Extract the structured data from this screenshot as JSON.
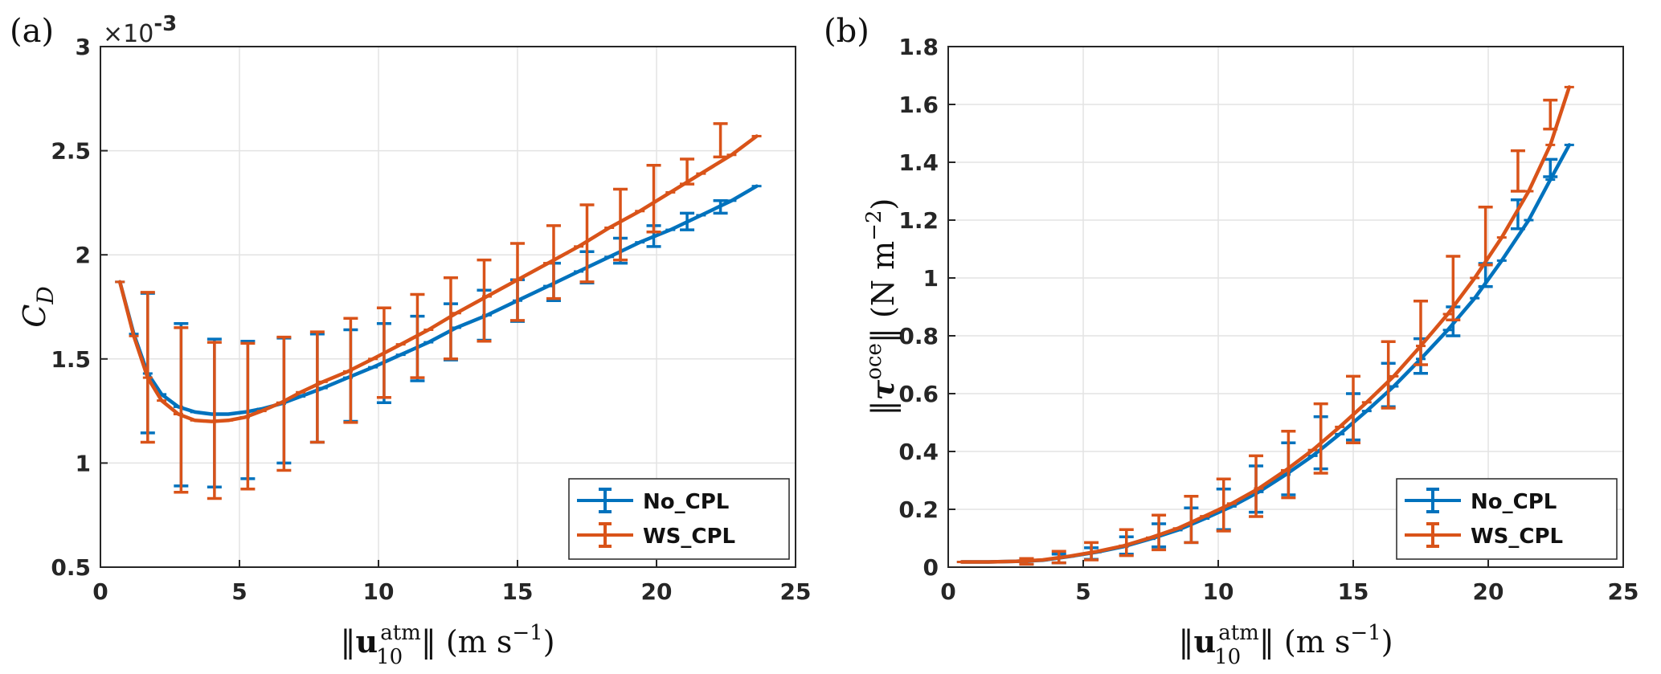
{
  "chart_data": [
    {
      "type": "line",
      "panel_label": "(a)",
      "ylabel": "C_D",
      "ylabel_main": "C",
      "ylabel_sub": "D",
      "y_scale_label_prefix": "×10",
      "y_scale_label_exp": "-3",
      "xlabel": "‖u10atm‖ (m s−1)",
      "xlabel_parts": {
        "open": "‖",
        "bold": "u",
        "sub": "10",
        "sup": "atm",
        "close": "‖ (m s",
        "unit_sup": "−1",
        "end": ")"
      },
      "xlim": [
        0,
        25
      ],
      "ylim": [
        0.5,
        3
      ],
      "xticks": [
        0,
        5,
        10,
        15,
        20,
        25
      ],
      "xtick_labels": [
        "0",
        "5",
        "10",
        "15",
        "20",
        "25"
      ],
      "yticks": [
        0.5,
        1,
        1.5,
        2,
        2.5,
        3
      ],
      "ytick_labels": [
        "0.5",
        "1",
        "1.5",
        "2",
        "2.5",
        "3"
      ],
      "grid": true,
      "legend_position": "bottom-right",
      "series": [
        {
          "name": "No_CPL",
          "color": "#0072BD",
          "x": [
            0.7,
            1.2,
            1.7,
            2.2,
            2.8,
            3.4,
            4.0,
            4.6,
            5.2,
            5.8,
            6.5,
            7.2,
            8.0,
            8.9,
            9.8,
            10.8,
            11.8,
            12.8,
            13.9,
            15.0,
            16.1,
            17.2,
            18.3,
            19.4,
            20.5,
            21.6,
            22.7,
            23.6
          ],
          "values": [
            1.87,
            1.62,
            1.43,
            1.33,
            1.27,
            1.245,
            1.235,
            1.235,
            1.245,
            1.26,
            1.285,
            1.32,
            1.36,
            1.41,
            1.46,
            1.52,
            1.58,
            1.65,
            1.71,
            1.78,
            1.85,
            1.92,
            1.99,
            2.06,
            2.12,
            2.19,
            2.26,
            2.33
          ],
          "errorbars": [
            {
              "x": 1.7,
              "y": 1.48,
              "err": 0.335
            },
            {
              "x": 2.9,
              "y": 1.28,
              "err": 0.39
            },
            {
              "x": 4.1,
              "y": 1.24,
              "err": 0.355
            },
            {
              "x": 5.3,
              "y": 1.255,
              "err": 0.33
            },
            {
              "x": 6.6,
              "y": 1.3,
              "err": 0.3
            },
            {
              "x": 7.8,
              "y": 1.36,
              "err": 0.26
            },
            {
              "x": 9.0,
              "y": 1.42,
              "err": 0.22
            },
            {
              "x": 10.2,
              "y": 1.48,
              "err": 0.19
            },
            {
              "x": 11.4,
              "y": 1.55,
              "err": 0.155
            },
            {
              "x": 12.6,
              "y": 1.63,
              "err": 0.135
            },
            {
              "x": 13.8,
              "y": 1.71,
              "err": 0.12
            },
            {
              "x": 15.0,
              "y": 1.78,
              "err": 0.1
            },
            {
              "x": 16.3,
              "y": 1.87,
              "err": 0.09
            },
            {
              "x": 17.5,
              "y": 1.94,
              "err": 0.075
            },
            {
              "x": 18.7,
              "y": 2.02,
              "err": 0.06
            },
            {
              "x": 19.9,
              "y": 2.09,
              "err": 0.05
            },
            {
              "x": 21.1,
              "y": 2.16,
              "err": 0.04
            },
            {
              "x": 22.3,
              "y": 2.23,
              "err": 0.03
            }
          ]
        },
        {
          "name": "WS_CPL",
          "color": "#D95319",
          "x": [
            0.7,
            1.2,
            1.7,
            2.2,
            2.8,
            3.4,
            4.0,
            4.6,
            5.2,
            5.8,
            6.5,
            7.2,
            8.0,
            8.9,
            9.8,
            10.8,
            11.8,
            12.8,
            13.9,
            15.0,
            16.1,
            17.2,
            18.3,
            19.4,
            20.5,
            21.6,
            22.7,
            23.6
          ],
          "values": [
            1.87,
            1.61,
            1.41,
            1.3,
            1.235,
            1.205,
            1.2,
            1.205,
            1.22,
            1.25,
            1.29,
            1.34,
            1.39,
            1.44,
            1.5,
            1.57,
            1.64,
            1.72,
            1.8,
            1.88,
            1.96,
            2.04,
            2.13,
            2.21,
            2.3,
            2.39,
            2.48,
            2.57
          ],
          "errorbars": [
            {
              "x": 1.7,
              "y": 1.46,
              "err": 0.36
            },
            {
              "x": 2.9,
              "y": 1.255,
              "err": 0.395
            },
            {
              "x": 4.1,
              "y": 1.205,
              "err": 0.375
            },
            {
              "x": 5.3,
              "y": 1.225,
              "err": 0.35
            },
            {
              "x": 6.6,
              "y": 1.285,
              "err": 0.32
            },
            {
              "x": 7.8,
              "y": 1.365,
              "err": 0.265
            },
            {
              "x": 9.0,
              "y": 1.445,
              "err": 0.25
            },
            {
              "x": 10.2,
              "y": 1.53,
              "err": 0.215
            },
            {
              "x": 11.4,
              "y": 1.61,
              "err": 0.2
            },
            {
              "x": 12.6,
              "y": 1.695,
              "err": 0.195
            },
            {
              "x": 13.8,
              "y": 1.78,
              "err": 0.195
            },
            {
              "x": 15.0,
              "y": 1.87,
              "err": 0.185
            },
            {
              "x": 16.3,
              "y": 1.965,
              "err": 0.175
            },
            {
              "x": 17.5,
              "y": 2.055,
              "err": 0.185
            },
            {
              "x": 18.7,
              "y": 2.145,
              "err": 0.17
            },
            {
              "x": 19.9,
              "y": 2.27,
              "err": 0.16
            },
            {
              "x": 21.1,
              "y": 2.4,
              "err": 0.06
            },
            {
              "x": 22.3,
              "y": 2.55,
              "err": 0.08
            }
          ]
        }
      ]
    },
    {
      "type": "line",
      "panel_label": "(b)",
      "ylabel": "‖τoce‖ (N m−2)",
      "ylabel_parts": {
        "open": "‖",
        "bold": "τ",
        "sup": "oce",
        "close": "‖ (N m",
        "unit_sup": "−2",
        "end": ")"
      },
      "xlabel": "‖u10atm‖ (m s−1)",
      "xlabel_parts": {
        "open": "‖",
        "bold": "u",
        "sub": "10",
        "sup": "atm",
        "close": "‖ (m s",
        "unit_sup": "−1",
        "end": ")"
      },
      "xlim": [
        0,
        25
      ],
      "ylim": [
        0,
        1.8
      ],
      "xticks": [
        0,
        5,
        10,
        15,
        20,
        25
      ],
      "xtick_labels": [
        "0",
        "5",
        "10",
        "15",
        "20",
        "25"
      ],
      "yticks": [
        0,
        0.2,
        0.4,
        0.6,
        0.8,
        1,
        1.2,
        1.4,
        1.6,
        1.8
      ],
      "ytick_labels": [
        "0",
        "0.2",
        "0.4",
        "0.6",
        "0.8",
        "1",
        "1.2",
        "1.4",
        "1.6",
        "1.8"
      ],
      "grid": true,
      "legend_position": "bottom-right",
      "series": [
        {
          "name": "No_CPL",
          "color": "#0072BD",
          "x": [
            0.5,
            1.5,
            2.5,
            3.5,
            4.5,
            5.5,
            6.5,
            7.5,
            8.5,
            9.5,
            10.5,
            11.5,
            12.5,
            13.5,
            14.5,
            15.5,
            16.5,
            17.5,
            18.5,
            19.5,
            20.5,
            21.5,
            22.3,
            23.0
          ],
          "values": [
            0.018,
            0.018,
            0.02,
            0.024,
            0.037,
            0.052,
            0.071,
            0.098,
            0.128,
            0.168,
            0.21,
            0.26,
            0.32,
            0.385,
            0.46,
            0.54,
            0.625,
            0.72,
            0.82,
            0.93,
            1.06,
            1.2,
            1.34,
            1.46
          ],
          "errorbars": [
            {
              "x": 2.9,
              "y": 0.02,
              "err": 0.01
            },
            {
              "x": 4.1,
              "y": 0.03,
              "err": 0.015
            },
            {
              "x": 5.3,
              "y": 0.047,
              "err": 0.02
            },
            {
              "x": 6.6,
              "y": 0.075,
              "err": 0.03
            },
            {
              "x": 7.8,
              "y": 0.11,
              "err": 0.04
            },
            {
              "x": 9.0,
              "y": 0.145,
              "err": 0.06
            },
            {
              "x": 10.2,
              "y": 0.2,
              "err": 0.07
            },
            {
              "x": 11.4,
              "y": 0.27,
              "err": 0.08
            },
            {
              "x": 12.6,
              "y": 0.34,
              "err": 0.09
            },
            {
              "x": 13.8,
              "y": 0.43,
              "err": 0.09
            },
            {
              "x": 15.0,
              "y": 0.52,
              "err": 0.08
            },
            {
              "x": 16.3,
              "y": 0.63,
              "err": 0.075
            },
            {
              "x": 17.5,
              "y": 0.73,
              "err": 0.06
            },
            {
              "x": 18.7,
              "y": 0.85,
              "err": 0.05
            },
            {
              "x": 19.9,
              "y": 1.01,
              "err": 0.04
            },
            {
              "x": 21.1,
              "y": 1.22,
              "err": 0.05
            },
            {
              "x": 22.3,
              "y": 1.38,
              "err": 0.03
            }
          ]
        },
        {
          "name": "WS_CPL",
          "color": "#D95319",
          "x": [
            0.5,
            1.5,
            2.5,
            3.5,
            4.5,
            5.5,
            6.5,
            7.5,
            8.5,
            9.5,
            10.5,
            11.5,
            12.5,
            13.5,
            14.5,
            15.5,
            16.5,
            17.5,
            18.5,
            19.5,
            20.5,
            21.5,
            22.3,
            23.0
          ],
          "values": [
            0.018,
            0.018,
            0.02,
            0.025,
            0.038,
            0.054,
            0.074,
            0.102,
            0.134,
            0.176,
            0.22,
            0.272,
            0.335,
            0.405,
            0.485,
            0.57,
            0.66,
            0.765,
            0.875,
            1.0,
            1.14,
            1.3,
            1.46,
            1.66
          ],
          "errorbars": [
            {
              "x": 2.9,
              "y": 0.02,
              "err": 0.01
            },
            {
              "x": 4.1,
              "y": 0.035,
              "err": 0.02
            },
            {
              "x": 5.3,
              "y": 0.055,
              "err": 0.03
            },
            {
              "x": 6.6,
              "y": 0.085,
              "err": 0.045
            },
            {
              "x": 7.8,
              "y": 0.12,
              "err": 0.06
            },
            {
              "x": 9.0,
              "y": 0.165,
              "err": 0.08
            },
            {
              "x": 10.2,
              "y": 0.215,
              "err": 0.09
            },
            {
              "x": 11.4,
              "y": 0.28,
              "err": 0.105
            },
            {
              "x": 12.6,
              "y": 0.355,
              "err": 0.115
            },
            {
              "x": 13.8,
              "y": 0.445,
              "err": 0.12
            },
            {
              "x": 15.0,
              "y": 0.545,
              "err": 0.115
            },
            {
              "x": 16.3,
              "y": 0.665,
              "err": 0.115
            },
            {
              "x": 17.5,
              "y": 0.81,
              "err": 0.11
            },
            {
              "x": 18.7,
              "y": 0.965,
              "err": 0.11
            },
            {
              "x": 19.9,
              "y": 1.145,
              "err": 0.1
            },
            {
              "x": 21.1,
              "y": 1.37,
              "err": 0.07
            },
            {
              "x": 22.3,
              "y": 1.565,
              "err": 0.05
            }
          ]
        }
      ]
    }
  ]
}
